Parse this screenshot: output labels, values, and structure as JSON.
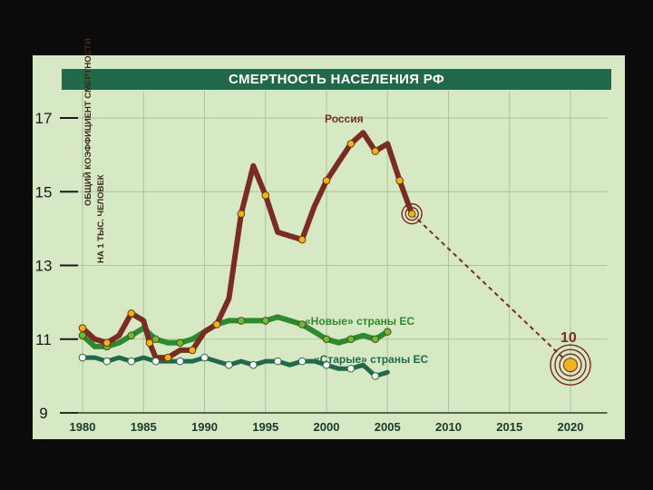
{
  "chart_data": {
    "type": "line",
    "title": "СМЕРТНОСТЬ НАСЕЛЕНИЯ РФ",
    "ylabel_line1": "ОБЩИЙ КОЭФФИЦИЕНТ СМЕРТНОСТИ",
    "ylabel_line2": "НА 1 ТЫС. ЧЕЛОВЕК",
    "xlim": [
      1980,
      2023
    ],
    "ylim": [
      9,
      17
    ],
    "x_ticks": [
      1980,
      1985,
      1990,
      1995,
      2000,
      2005,
      2010,
      2015,
      2020
    ],
    "y_ticks": [
      9,
      11,
      13,
      15,
      17
    ],
    "grid": true,
    "series": [
      {
        "name": "Россия",
        "color": "#7a2c22",
        "marker_color": "#f2b21c",
        "x": [
          1980,
          1981,
          1982,
          1983,
          1984,
          1985,
          1985.5,
          1986,
          1987,
          1988,
          1989,
          1990,
          1991,
          1992,
          1993,
          1994,
          1995,
          1996,
          1997,
          1998,
          1999,
          2000,
          2001,
          2002,
          2003,
          2004,
          2005,
          2006,
          2007
        ],
        "y": [
          11.3,
          11.0,
          10.9,
          11.1,
          11.7,
          11.5,
          10.9,
          10.5,
          10.5,
          10.7,
          10.7,
          11.2,
          11.4,
          12.1,
          14.4,
          15.7,
          14.9,
          13.9,
          13.8,
          13.7,
          14.6,
          15.3,
          15.8,
          16.3,
          16.6,
          16.1,
          16.3,
          15.3,
          14.4
        ]
      },
      {
        "name": "«Новые» страны ЕС",
        "color": "#2e8a2e",
        "marker_color": "#5fc238",
        "x": [
          1980,
          1981,
          1982,
          1983,
          1984,
          1985,
          1986,
          1987,
          1988,
          1989,
          1990,
          1991,
          1992,
          1993,
          1994,
          1995,
          1996,
          1997,
          1998,
          1999,
          2000,
          2001,
          2002,
          2003,
          2004,
          2005
        ],
        "y": [
          11.1,
          10.8,
          10.8,
          10.9,
          11.1,
          11.3,
          11.0,
          10.9,
          10.9,
          11.0,
          11.2,
          11.4,
          11.5,
          11.5,
          11.5,
          11.5,
          11.6,
          11.5,
          11.4,
          11.2,
          11.0,
          10.9,
          11.0,
          11.1,
          11.0,
          11.2
        ]
      },
      {
        "name": "«Старые» страны ЕС",
        "color": "#22684a",
        "marker_color": "#ffffff",
        "x": [
          1980,
          1981,
          1982,
          1983,
          1984,
          1985,
          1986,
          1987,
          1988,
          1989,
          1990,
          1991,
          1992,
          1993,
          1994,
          1995,
          1996,
          1997,
          1998,
          1999,
          2000,
          2001,
          2002,
          2003,
          2004,
          2005
        ],
        "y": [
          10.5,
          10.5,
          10.4,
          10.5,
          10.4,
          10.5,
          10.4,
          10.4,
          10.4,
          10.4,
          10.5,
          10.4,
          10.3,
          10.4,
          10.3,
          10.4,
          10.4,
          10.3,
          10.4,
          10.4,
          10.3,
          10.2,
          10.2,
          10.3,
          10.0,
          10.1
        ]
      }
    ],
    "projection": {
      "color": "#7a2c22",
      "from": [
        2007,
        14.4
      ],
      "to": [
        2020,
        10.3
      ],
      "label": "10",
      "target_color": "#f2b21c"
    }
  }
}
